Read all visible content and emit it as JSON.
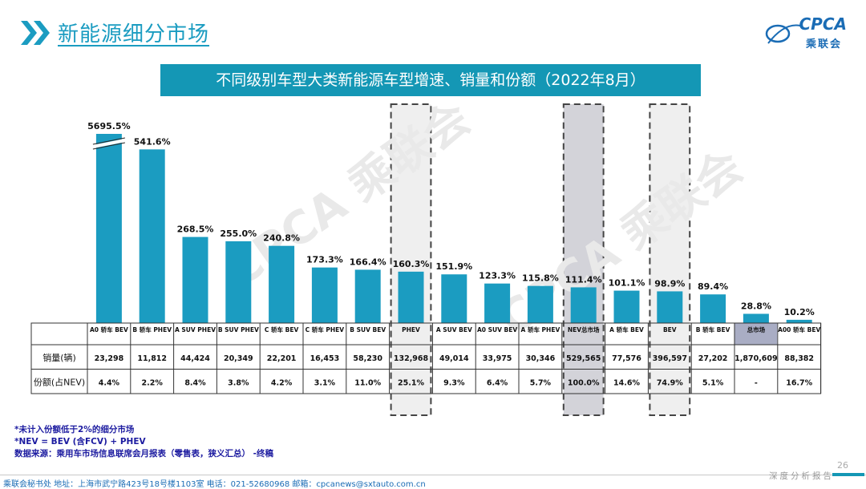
{
  "header": {
    "title": "新能源细分市场"
  },
  "logo": {
    "brand": "CPCA",
    "name": "乘联会"
  },
  "chart_data": {
    "type": "bar",
    "title": "不同级别车型大类新能源车型增速、销量和份额（2022年8月）",
    "categories": [
      "A0 轿车 BEV",
      "B 轿车 PHEV",
      "A SUV PHEV",
      "B SUV PHEV",
      "C 轿车 BEV",
      "C 轿车 PHEV",
      "B SUV BEV",
      "PHEV",
      "A SUV BEV",
      "A0 SUV BEV",
      "A 轿车 PHEV",
      "NEV总市场",
      "A 轿车 BEV",
      "BEV",
      "B 轿车 BEV",
      "总市场",
      "A00 轿车 BEV"
    ],
    "values": [
      5695.5,
      541.6,
      268.5,
      255.0,
      240.8,
      173.3,
      166.4,
      160.3,
      151.9,
      123.3,
      115.8,
      111.4,
      101.1,
      98.9,
      89.4,
      28.8,
      10.2
    ],
    "value_labels": [
      "5695.5%",
      "541.6%",
      "268.5%",
      "255.0%",
      "240.8%",
      "173.3%",
      "166.4%",
      "160.3%",
      "151.9%",
      "123.3%",
      "115.8%",
      "111.4%",
      "101.1%",
      "98.9%",
      "89.4%",
      "28.8%",
      "10.2%"
    ],
    "axis_break_category": "A0 轿车 BEV",
    "highlighted": [
      "PHEV",
      "NEV总市场",
      "BEV"
    ],
    "bar_color": "#1b9cc1",
    "table": {
      "row_labels": [
        "销量(辆)",
        "份额(占NEV)"
      ],
      "sales": [
        "23,298",
        "11,812",
        "44,424",
        "20,349",
        "22,201",
        "16,453",
        "58,230",
        "132,968",
        "49,014",
        "33,975",
        "30,346",
        "529,565",
        "77,576",
        "396,597",
        "27,202",
        "1,870,609",
        "88,382"
      ],
      "shares": [
        "4.4%",
        "2.2%",
        "8.4%",
        "3.8%",
        "4.2%",
        "3.1%",
        "11.0%",
        "25.1%",
        "9.3%",
        "6.4%",
        "5.7%",
        "100.0%",
        "14.6%",
        "74.9%",
        "5.1%",
        "-",
        "16.7%"
      ]
    }
  },
  "notes": [
    "*未计入份额低于2%的细分市场",
    "*NEV = BEV (含FCV) + PHEV",
    "数据来源：乘用车市场信息联席会月报表（零售表，狭义汇总） -终稿"
  ],
  "footer": {
    "contact": "乘联会秘书处   地址：上海市武宁路423号18号楼1103室  电话：021-52680968   邮箱：cpcanews@sxtauto.com.cn",
    "right": "深度分析报告",
    "page_number": "26"
  }
}
